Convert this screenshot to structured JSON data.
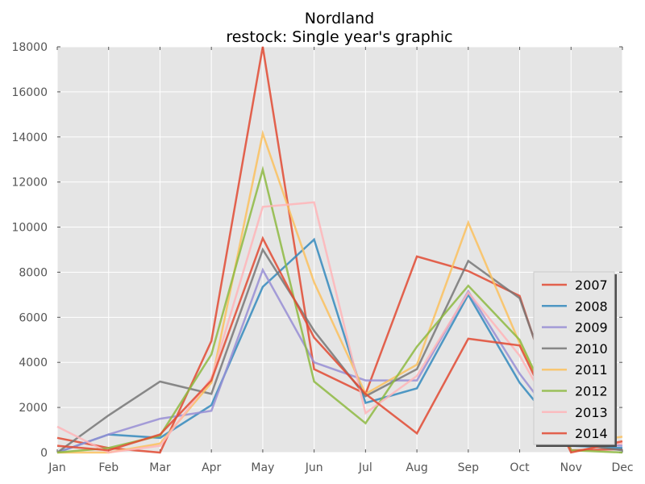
{
  "chart_data": {
    "type": "line",
    "title": "Nordland",
    "subtitle": "restock: Single year's graphic",
    "xlabel": "",
    "ylabel": "",
    "categories": [
      "Jan",
      "Feb",
      "Mar",
      "Apr",
      "May",
      "Jun",
      "Jul",
      "Aug",
      "Sep",
      "Oct",
      "Nov",
      "Dec"
    ],
    "ylim": [
      0,
      18000
    ],
    "yticks": [
      0,
      2000,
      4000,
      6000,
      8000,
      10000,
      12000,
      14000,
      16000,
      18000
    ],
    "grid": true,
    "legend_position": "lower-right",
    "series": [
      {
        "name": "2007",
        "color": "#e24a33",
        "values": [
          650,
          200,
          0,
          4950,
          18000,
          3700,
          2600,
          8700,
          8050,
          6950,
          100,
          150
        ]
      },
      {
        "name": "2008",
        "color": "#348abd",
        "values": [
          0,
          800,
          650,
          2100,
          7350,
          9450,
          2200,
          2850,
          7000,
          3100,
          300,
          200
        ]
      },
      {
        "name": "2009",
        "color": "#988ed5",
        "values": [
          0,
          800,
          1500,
          1850,
          8100,
          4000,
          3200,
          3200,
          7150,
          3500,
          500,
          300
        ]
      },
      {
        "name": "2010",
        "color": "#777777",
        "values": [
          0,
          1650,
          3150,
          2600,
          9000,
          5400,
          2500,
          3700,
          8500,
          6850,
          400,
          100
        ]
      },
      {
        "name": "2011",
        "color": "#fbc15e",
        "values": [
          0,
          0,
          400,
          3100,
          14150,
          7550,
          2600,
          3900,
          10200,
          4850,
          400,
          700
        ]
      },
      {
        "name": "2012",
        "color": "#8eba42",
        "values": [
          0,
          200,
          750,
          4350,
          12550,
          3150,
          1300,
          4700,
          7400,
          5000,
          100,
          0
        ]
      },
      {
        "name": "2013",
        "color": "#ffb5b8",
        "values": [
          1150,
          0,
          300,
          3300,
          10900,
          11100,
          1750,
          3400,
          7100,
          4300,
          300,
          400
        ]
      },
      {
        "name": "2014",
        "color": "#e24a33",
        "values": [
          300,
          100,
          800,
          3200,
          9500,
          5100,
          2600,
          850,
          5050,
          4750,
          0,
          500
        ]
      }
    ]
  }
}
